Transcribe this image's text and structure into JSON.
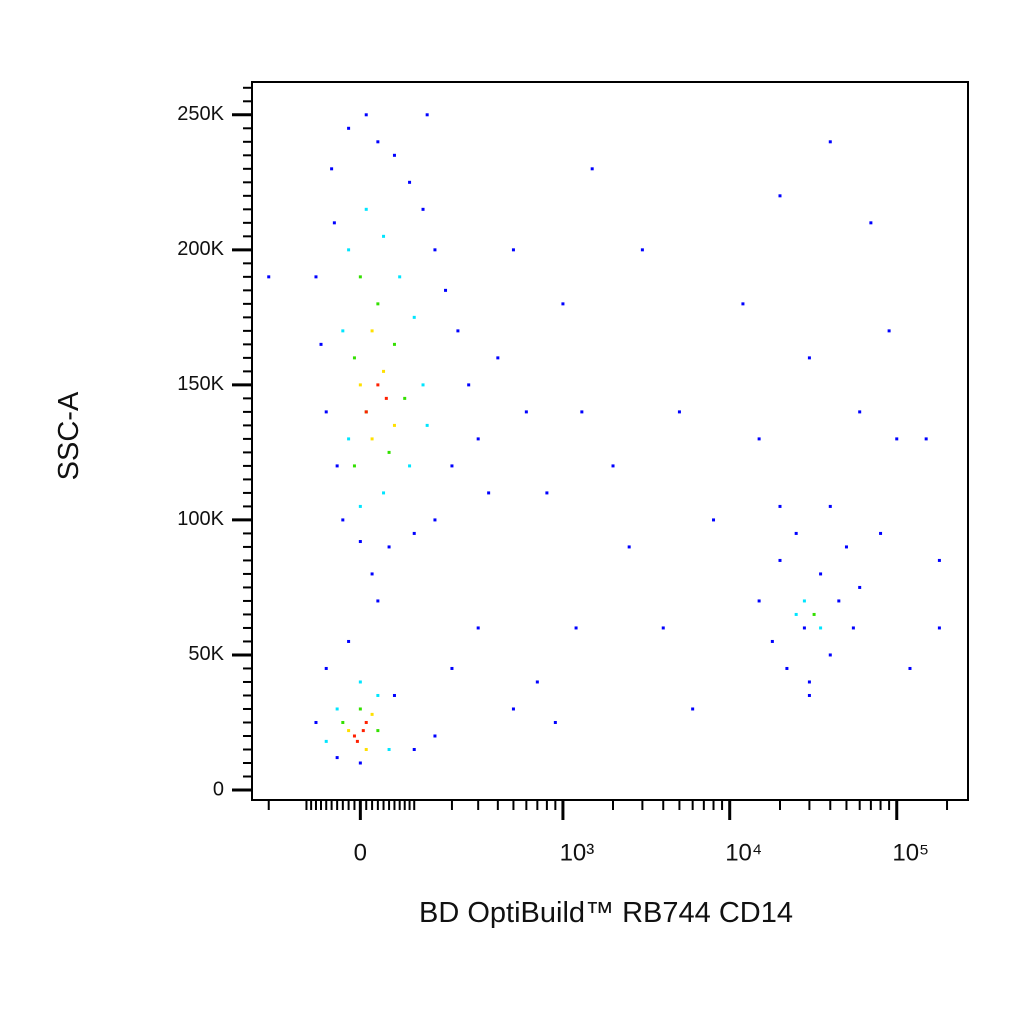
{
  "chart_data": {
    "type": "scatter",
    "x_label": "BD OptiBuild™ RB744 CD14",
    "y_label": "SSC-A",
    "xscale": "biexponential",
    "xlim": [
      -260,
      267000
    ],
    "ylim": [
      -3700,
      262144
    ],
    "xticks": [
      0,
      {
        "value": 1000,
        "label": "10³"
      },
      {
        "value": 10000,
        "label": "10⁴"
      },
      {
        "value": 100000,
        "label": "10⁵"
      }
    ],
    "xminorticks": [
      -200,
      -100,
      -90,
      -80,
      -70,
      -60,
      -50,
      -40,
      -30,
      -20,
      -10,
      10,
      20,
      30,
      40,
      50,
      60,
      70,
      80,
      90,
      100,
      200,
      300,
      400,
      500,
      600,
      700,
      800,
      900,
      2000,
      3000,
      4000,
      5000,
      6000,
      7000,
      8000,
      9000,
      20000,
      30000,
      40000,
      50000,
      60000,
      70000,
      80000,
      90000,
      200000
    ],
    "yticks": [
      0,
      {
        "value": 50000,
        "label": "50K"
      },
      {
        "value": 100000,
        "label": "100K"
      },
      {
        "value": 150000,
        "label": "150K"
      },
      {
        "value": 200000,
        "label": "200K"
      },
      {
        "value": 250000,
        "label": "250K"
      }
    ],
    "yminorticks": [
      5000,
      10000,
      15000,
      20000,
      25000,
      30000,
      35000,
      40000,
      45000,
      55000,
      60000,
      65000,
      70000,
      75000,
      80000,
      85000,
      90000,
      95000,
      105000,
      110000,
      115000,
      120000,
      125000,
      130000,
      135000,
      140000,
      145000,
      155000,
      160000,
      165000,
      170000,
      175000,
      180000,
      185000,
      190000,
      195000,
      205000,
      210000,
      215000,
      220000,
      225000,
      230000,
      235000,
      240000,
      245000,
      255000,
      260000
    ],
    "series": [
      {
        "color": "#0000ff",
        "x": [
          -80,
          -50,
          -40,
          -20,
          10,
          30,
          60,
          90,
          120,
          150,
          180,
          220,
          260,
          300,
          350,
          200,
          150,
          100,
          50,
          0,
          -30,
          -60,
          -70,
          -45,
          130,
          400,
          500,
          600,
          800,
          1000,
          1300,
          1500,
          2000,
          2500,
          3000,
          4000,
          5000,
          6000,
          8000,
          1200,
          700,
          500,
          900,
          300,
          200,
          150,
          100,
          0,
          -40,
          -80,
          -60,
          -20,
          30,
          60,
          20,
          15000,
          18000,
          20000,
          22000,
          25000,
          28000,
          30000,
          35000,
          40000,
          45000,
          50000,
          55000,
          60000,
          20000,
          40000,
          30000,
          12000,
          20000,
          40000,
          70000,
          90000,
          100000,
          150000,
          120000,
          180000,
          180000,
          15000,
          30000,
          60000,
          80000,
          -200
        ],
        "values": [
          190000,
          230000,
          120000,
          245000,
          250000,
          240000,
          235000,
          225000,
          215000,
          200000,
          185000,
          170000,
          150000,
          130000,
          110000,
          120000,
          100000,
          95000,
          90000,
          92000,
          100000,
          140000,
          165000,
          210000,
          250000,
          160000,
          200000,
          140000,
          110000,
          180000,
          140000,
          230000,
          120000,
          90000,
          200000,
          60000,
          140000,
          30000,
          100000,
          60000,
          40000,
          30000,
          25000,
          60000,
          45000,
          20000,
          15000,
          10000,
          12000,
          25000,
          45000,
          55000,
          70000,
          35000,
          80000,
          70000,
          55000,
          85000,
          45000,
          95000,
          60000,
          40000,
          80000,
          50000,
          70000,
          90000,
          60000,
          75000,
          105000,
          105000,
          35000,
          180000,
          220000,
          240000,
          210000,
          170000,
          130000,
          130000,
          45000,
          60000,
          85000,
          130000,
          160000,
          140000,
          95000,
          190000
        ]
      },
      {
        "color": "#00e5ff",
        "x": [
          -20,
          10,
          40,
          70,
          100,
          -30,
          120,
          -20,
          90,
          40,
          130,
          0,
          -40,
          30,
          -60,
          50,
          0,
          28000,
          35000,
          25000
        ],
        "values": [
          200000,
          215000,
          205000,
          190000,
          175000,
          170000,
          150000,
          130000,
          120000,
          110000,
          135000,
          105000,
          30000,
          35000,
          18000,
          15000,
          40000,
          70000,
          60000,
          65000
        ]
      },
      {
        "color": "#33e000",
        "x": [
          0,
          30,
          60,
          -10,
          80,
          10,
          50,
          -10,
          -30,
          30,
          0,
          32000
        ],
        "values": [
          190000,
          180000,
          165000,
          160000,
          145000,
          140000,
          125000,
          120000,
          25000,
          22000,
          30000,
          65000
        ]
      },
      {
        "color": "#ffe000",
        "x": [
          20,
          40,
          0,
          60,
          20,
          -20,
          20,
          10
        ],
        "values": [
          170000,
          155000,
          150000,
          135000,
          130000,
          22000,
          28000,
          15000
        ]
      },
      {
        "color": "#ff2000",
        "x": [
          30,
          10,
          45,
          -10,
          5,
          -5,
          10
        ],
        "values": [
          150000,
          140000,
          145000,
          20000,
          22000,
          18000,
          25000
        ]
      }
    ]
  }
}
